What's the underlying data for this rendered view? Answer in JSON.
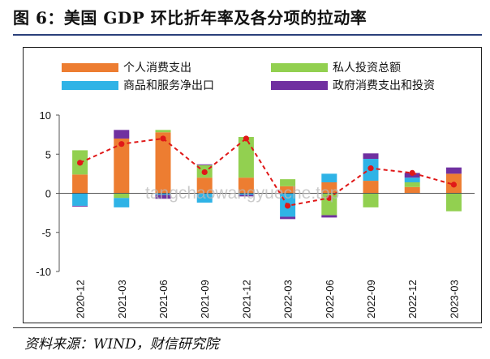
{
  "title": "图 6：美国 GDP 环比折年率及各分项的拉动率",
  "source": "资料来源：WIND，财信研究院",
  "watermark": "tangchaowangyueche.top",
  "chart_data": {
    "type": "bar",
    "stacked": true,
    "categories": [
      "2020-12",
      "2021-03",
      "2021-06",
      "2021-09",
      "2021-12",
      "2022-03",
      "2022-06",
      "2022-09",
      "2022-12",
      "2023-03"
    ],
    "ylim": [
      -10,
      10
    ],
    "yticks": [
      10,
      5,
      0,
      -5,
      -10
    ],
    "legend_position": "top",
    "series": [
      {
        "name": "个人消费支出",
        "color": "#ed7d31",
        "values": [
          2.4,
          7.0,
          7.8,
          2.0,
          2.0,
          0.9,
          1.4,
          1.6,
          0.8,
          2.5
        ]
      },
      {
        "name": "私人投资总额",
        "color": "#92d050",
        "values": [
          3.1,
          -0.6,
          0.3,
          1.6,
          5.2,
          0.9,
          -2.8,
          -1.8,
          0.6,
          -2.3
        ]
      },
      {
        "name": "商品和服务净出口",
        "color": "#2fb3e6",
        "values": [
          -1.6,
          -1.2,
          -0.2,
          -1.2,
          -0.2,
          -3.0,
          1.1,
          2.8,
          0.6,
          0.0
        ]
      },
      {
        "name": "政府消费支出和投资",
        "color": "#7030a0",
        "values": [
          -0.1,
          1.1,
          -0.5,
          0.1,
          -0.2,
          -0.3,
          -0.3,
          0.7,
          0.6,
          0.8
        ]
      }
    ],
    "line": {
      "name": "GDP 环比折年率",
      "color": "#e01818",
      "values": [
        3.9,
        6.3,
        7.0,
        2.7,
        7.0,
        -1.6,
        -0.6,
        3.2,
        2.6,
        1.1
      ]
    }
  }
}
